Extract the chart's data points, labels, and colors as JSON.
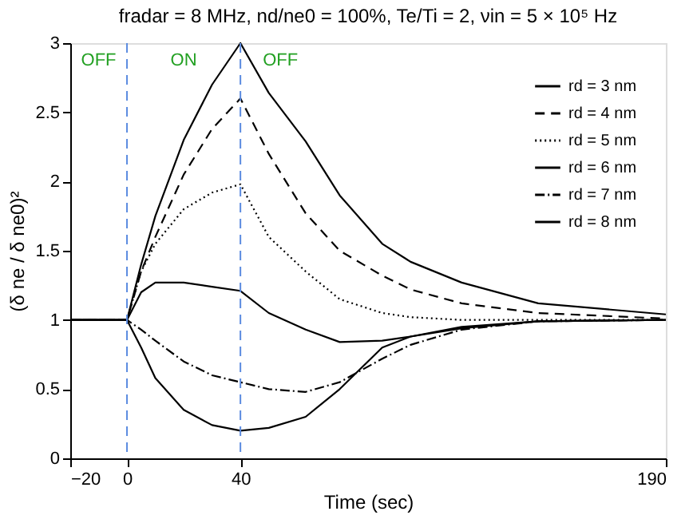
{
  "chart_data": {
    "type": "line",
    "title": "fradar = 8 MHz, nd/ne0 = 100%, Te/Ti = 2, νin = 5 × 10⁵ Hz",
    "xlabel": "Time (sec)",
    "ylabel": "(δ ne / δ ne0)²",
    "xlim": [
      -20,
      190
    ],
    "xticks": [
      -20,
      0,
      40,
      190
    ],
    "ylim": [
      0,
      3
    ],
    "yticks": [
      0,
      0.5,
      1,
      1.5,
      2,
      2.5,
      3
    ],
    "grid": false,
    "legend": "top right",
    "marker": "none",
    "x": [
      -20,
      0,
      5,
      10,
      20,
      30,
      40,
      50,
      63,
      75,
      90,
      100,
      118,
      145,
      190
    ],
    "series": [
      {
        "name": "rd = 3 nm",
        "color": "#000000",
        "line_style": "solid",
        "values": [
          1,
          1,
          1.4,
          1.75,
          2.3,
          2.7,
          3.0,
          2.64,
          2.29,
          1.9,
          1.55,
          1.42,
          1.27,
          1.12,
          1.04
        ]
      },
      {
        "name": "rd = 4 nm",
        "color": "#000000",
        "line_style": "dashed",
        "values": [
          1,
          1,
          1.35,
          1.6,
          2.05,
          2.38,
          2.6,
          2.2,
          1.77,
          1.5,
          1.32,
          1.22,
          1.12,
          1.05,
          1.01
        ]
      },
      {
        "name": "rd = 5 nm",
        "color": "#000000",
        "line_style": "dotted",
        "values": [
          1,
          1,
          1.35,
          1.55,
          1.8,
          1.92,
          1.98,
          1.6,
          1.35,
          1.15,
          1.05,
          1.02,
          1.0,
          1.0,
          1.0
        ]
      },
      {
        "name": "rd = 6 nm",
        "color": "#000000",
        "line_style": "solid",
        "values": [
          1,
          1,
          1.2,
          1.27,
          1.27,
          1.24,
          1.21,
          1.05,
          0.93,
          0.84,
          0.85,
          0.88,
          0.94,
          0.99,
          1.0
        ]
      },
      {
        "name": "rd = 7 nm",
        "color": "#000000",
        "line_style": "dashdot",
        "values": [
          1,
          1,
          0.93,
          0.85,
          0.7,
          0.6,
          0.55,
          0.5,
          0.48,
          0.55,
          0.72,
          0.82,
          0.93,
          0.99,
          1.0
        ]
      },
      {
        "name": "rd = 8 nm",
        "color": "#000000",
        "line_style": "solid",
        "values": [
          1,
          1,
          0.8,
          0.58,
          0.35,
          0.24,
          0.2,
          0.22,
          0.3,
          0.5,
          0.8,
          0.88,
          0.95,
          0.99,
          1.0
        ]
      }
    ],
    "ref_lines": [
      {
        "axis": "x",
        "value": 0,
        "label": null,
        "color": "#5b8be0",
        "line_style": "dashed"
      },
      {
        "axis": "x",
        "value": 40,
        "label": null,
        "color": "#5b8be0",
        "line_style": "dashed"
      }
    ],
    "annotations": [
      "OFF",
      "ON",
      "OFF"
    ]
  }
}
